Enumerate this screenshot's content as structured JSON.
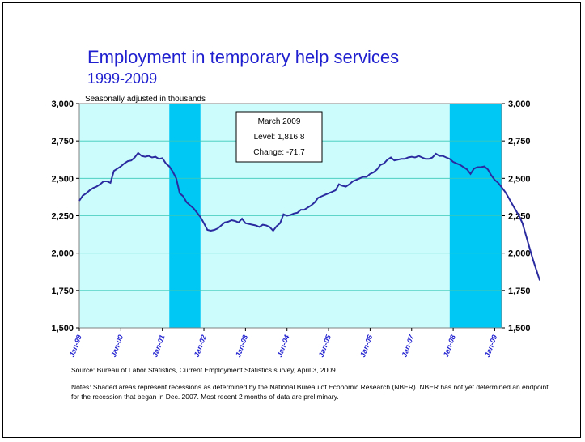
{
  "title": "Employment in temporary help services",
  "subtitle": "1999-2009",
  "colors": {
    "title": "#1f1fcf",
    "plot_bg": "#ccfcfc",
    "recession": "#00c8f5",
    "line": "#2b2ba0",
    "grid": "#3ac8b8"
  },
  "chart_data": {
    "type": "line",
    "unit_label": "Seasonally adjusted in thousands",
    "ylim": [
      1500,
      3000
    ],
    "yticks": [
      "1,500",
      "1,750",
      "2,000",
      "2,250",
      "2,500",
      "2,750",
      "3,000"
    ],
    "ytick_values": [
      1500,
      1750,
      2000,
      2250,
      2500,
      2750,
      3000
    ],
    "xtick_labels": [
      "Jan-99",
      "Jan-00",
      "Jan-01",
      "Jan-02",
      "Jan-03",
      "Jan-04",
      "Jan-05",
      "Jan-06",
      "Jan-07",
      "Jan-08",
      "Jan-09"
    ],
    "x_start": "1999-01",
    "x_end": "2009-03",
    "grid": true,
    "recessions": [
      {
        "start": "2001-03",
        "end": "2001-11"
      },
      {
        "start": "2007-12",
        "end": "2009-03"
      }
    ],
    "annotation": {
      "title": "March 2009",
      "level": "Level: 1,816.8",
      "change": "Change: -71.7"
    },
    "series": [
      {
        "values": [
          2350,
          2385,
          2400,
          2420,
          2435,
          2445,
          2460,
          2480,
          2480,
          2470,
          2550,
          2565,
          2580,
          2600,
          2615,
          2620,
          2640,
          2670,
          2650,
          2645,
          2650,
          2640,
          2645,
          2630,
          2635,
          2600,
          2580,
          2545,
          2500,
          2400,
          2380,
          2340,
          2320,
          2300,
          2270,
          2240,
          2200,
          2155,
          2150,
          2155,
          2165,
          2185,
          2205,
          2210,
          2220,
          2215,
          2205,
          2230,
          2200,
          2195,
          2190,
          2185,
          2175,
          2190,
          2185,
          2175,
          2150,
          2180,
          2200,
          2260,
          2250,
          2255,
          2265,
          2270,
          2290,
          2290,
          2305,
          2320,
          2340,
          2370,
          2380,
          2390,
          2400,
          2410,
          2420,
          2460,
          2450,
          2445,
          2460,
          2480,
          2490,
          2500,
          2510,
          2510,
          2530,
          2540,
          2560,
          2590,
          2600,
          2625,
          2640,
          2620,
          2625,
          2630,
          2630,
          2640,
          2645,
          2640,
          2650,
          2640,
          2630,
          2630,
          2640,
          2665,
          2650,
          2650,
          2640,
          2630,
          2610,
          2600,
          2590,
          2575,
          2560,
          2530,
          2565,
          2575,
          2575,
          2580,
          2560,
          2520,
          2490,
          2470,
          2440,
          2410,
          2370,
          2330,
          2290,
          2250,
          2200,
          2120,
          2040,
          1960,
          1888,
          1817
        ]
      }
    ]
  },
  "source": "Source:  Bureau of Labor Statistics, Current Employment Statistics survey, April 3, 2009.",
  "notes": "Notes: Shaded areas represent recessions as determined by the National Bureau of Economic Research (NBER). NBER has not yet determined an endpoint for the recession that began in Dec. 2007. Most recent 2 months of data are preliminary."
}
